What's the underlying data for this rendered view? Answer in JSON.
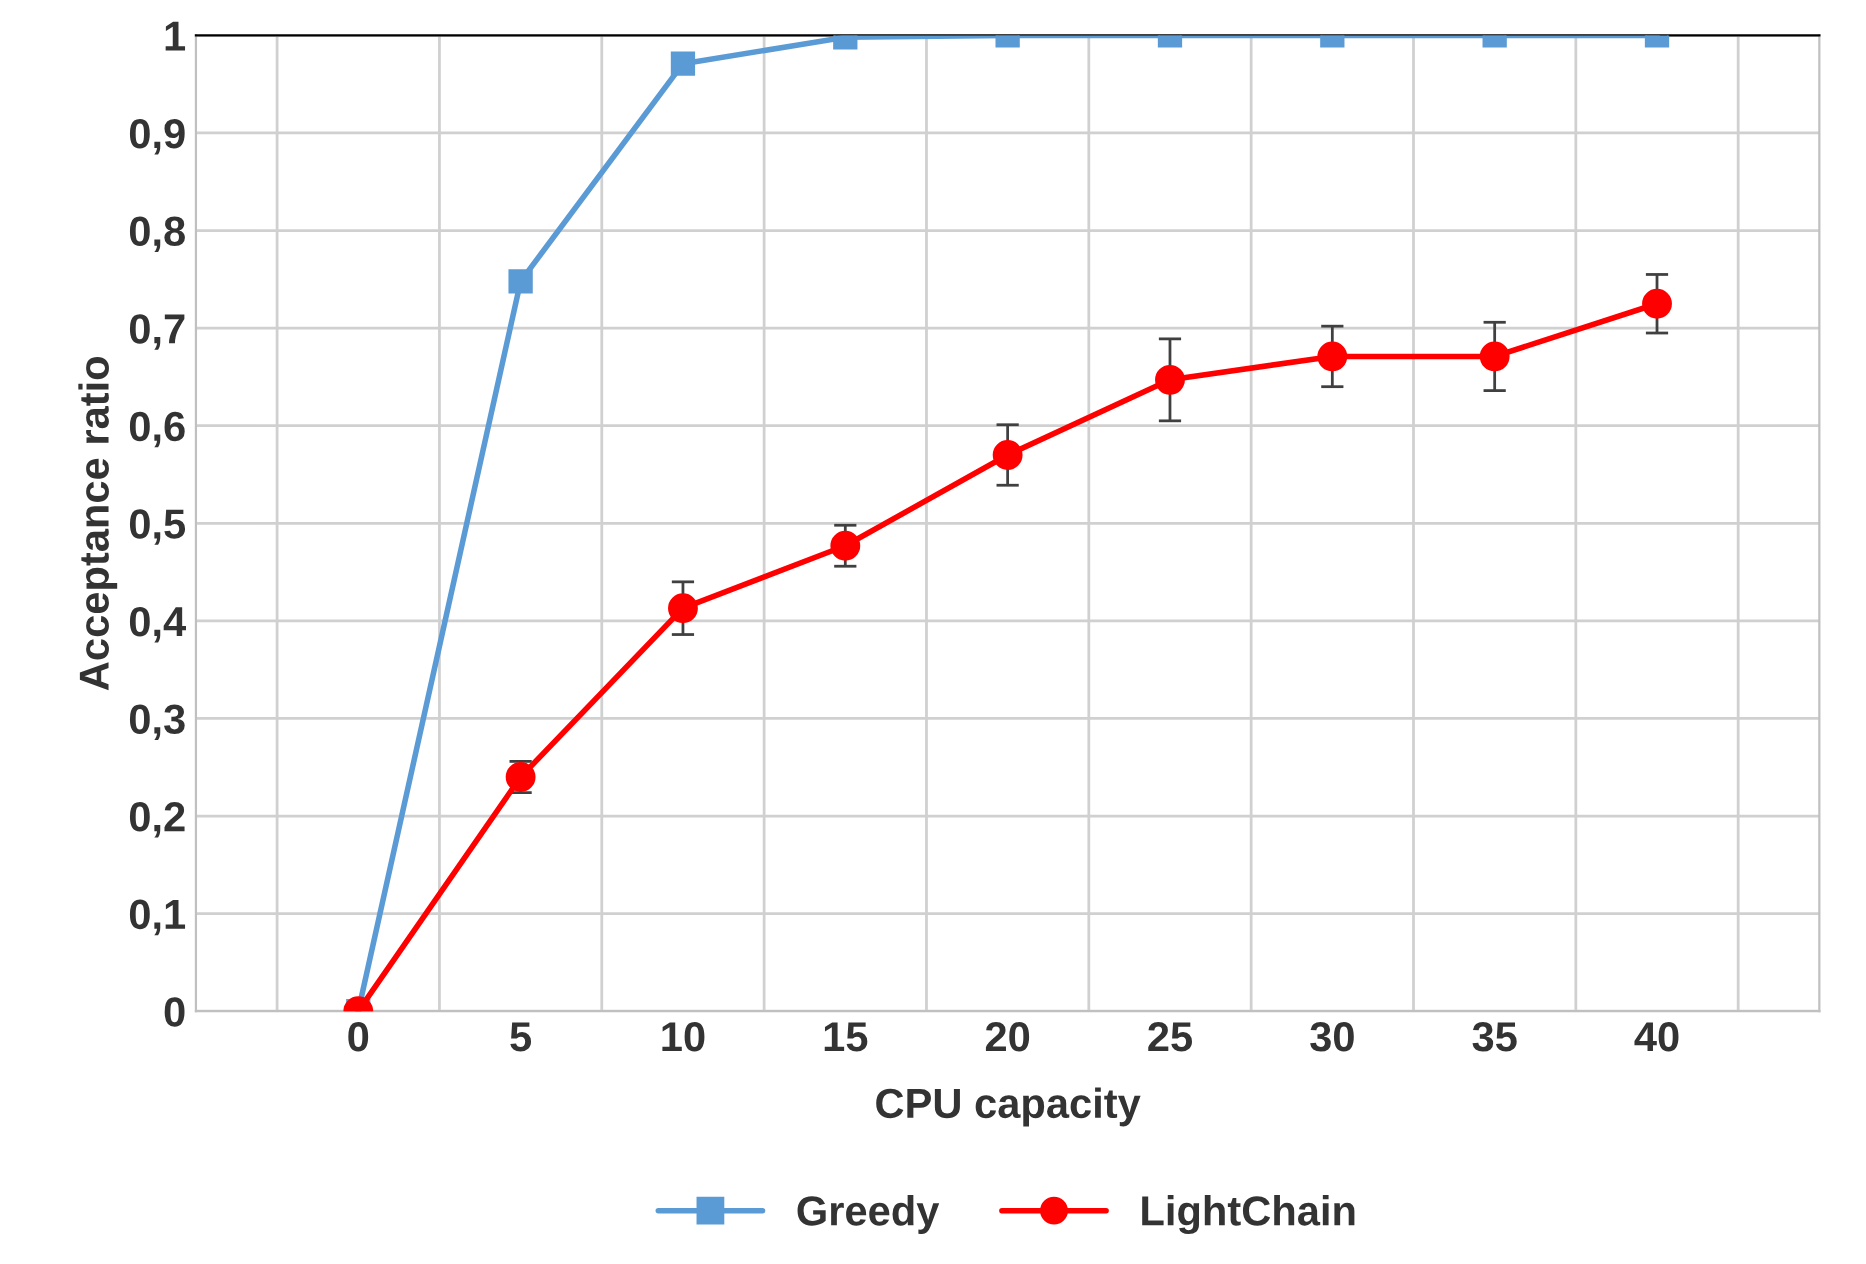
{
  "chart_data": {
    "type": "line",
    "xlabel": "CPU capacity",
    "ylabel": "Acceptance ratio",
    "categories": [
      "0",
      "5",
      "10",
      "15",
      "20",
      "25",
      "30",
      "35",
      "40"
    ],
    "series": [
      {
        "name": "Greedy",
        "color": "#5b9bd5",
        "marker": "square",
        "values": [
          0,
          0.748,
          0.971,
          0.998,
          1,
          1,
          1,
          1,
          1
        ]
      },
      {
        "name": "LightChain",
        "color": "#ff0000",
        "marker": "circle",
        "values": [
          0,
          0.24,
          0.413,
          0.477,
          0.57,
          0.647,
          0.671,
          0.671,
          0.725
        ],
        "errors": [
          null,
          0.016,
          0.027,
          0.021,
          0.031,
          0.042,
          0.031,
          0.035,
          0.03
        ]
      }
    ],
    "ylim": [
      0,
      1
    ],
    "yticks": [
      0,
      {
        "value": 0.1,
        "label": "0,1"
      },
      {
        "value": 0.2,
        "label": "0,2"
      },
      {
        "value": 0.3,
        "label": "0,3"
      },
      {
        "value": 0.4,
        "label": "0,4"
      },
      {
        "value": 0.5,
        "label": "0,5"
      },
      {
        "value": 0.6,
        "label": "0,6"
      },
      {
        "value": 0.7,
        "label": "0,7"
      },
      {
        "value": 0.8,
        "label": "0,8"
      },
      {
        "value": 0.9,
        "label": "0,9"
      },
      1
    ],
    "grid": true,
    "legend": "bottom",
    "line_style": "solid"
  }
}
